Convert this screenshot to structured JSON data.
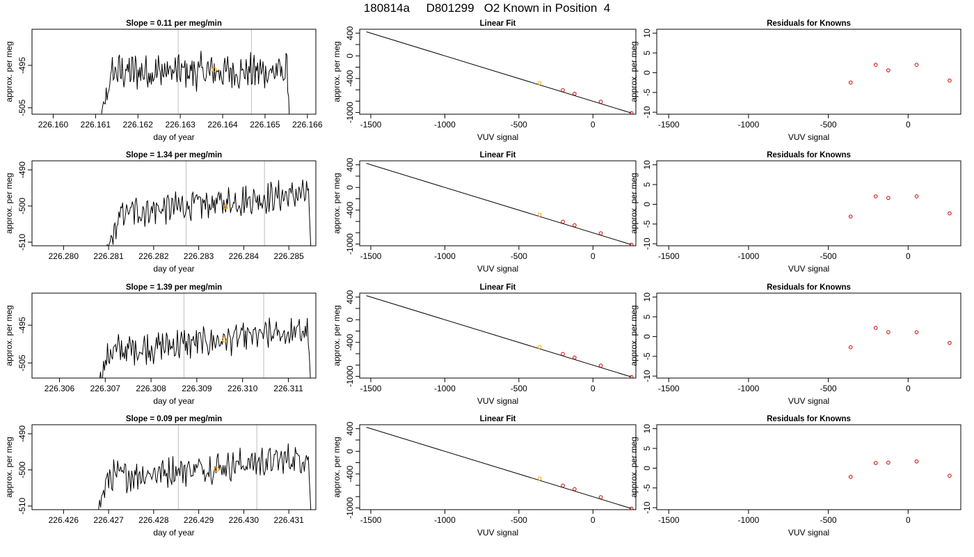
{
  "page": {
    "title": "180814a     D801299   O2 Known in Position  4"
  },
  "colors": {
    "trace": "#000000",
    "marker": "#ffa500",
    "residual": "#d00000",
    "guide": "#c8c8c8",
    "fit": "#000000"
  },
  "chart_data": [
    {
      "type": "line",
      "row": 0,
      "panel": "time",
      "title": "Slope =  0.11  per meg/min",
      "xlabel": "day of year",
      "ylabel": "approx. per meg",
      "xlim": [
        226.1595,
        226.1662
      ],
      "ylim": [
        -506.5,
        -486.5
      ],
      "xticks": [
        "226.160",
        "226.161",
        "226.162",
        "226.163",
        "226.164",
        "226.165",
        "226.166"
      ],
      "xtick_values": [
        226.16,
        226.161,
        226.162,
        226.163,
        226.164,
        226.165,
        226.166
      ],
      "yticks": [
        "-495",
        "-505"
      ],
      "ytick_values": [
        -495,
        -505
      ],
      "start": 226.161,
      "end": 226.1656,
      "mean": -496.5,
      "ramp_end": 226.1614,
      "vlines": [
        226.16295,
        226.16468
      ],
      "highlight": {
        "x": 226.1638,
        "y": -496.0
      },
      "grid": false
    },
    {
      "type": "line",
      "row": 0,
      "panel": "fit",
      "title": "Linear Fit",
      "xlabel": "VUV signal",
      "ylabel": "approx. per meg",
      "xlim": [
        -1575,
        290
      ],
      "ylim": [
        -1030,
        470
      ],
      "xticks": [
        "-1500",
        "-1000",
        "-500",
        "0"
      ],
      "xtick_values": [
        -1500,
        -1000,
        -500,
        0
      ],
      "yticks": [
        "400",
        "0",
        "-400",
        "-1000"
      ],
      "ytick_values": [
        400,
        0,
        -400,
        -1000
      ],
      "yminor": [
        200,
        -200,
        -600,
        -800
      ],
      "fit_line": {
        "x": [
          -1530,
          260
        ],
        "y": [
          425,
          -1010
        ]
      },
      "points": {
        "x": [
          -360,
          -203,
          -124,
          53,
          260
        ],
        "y": [
          -480,
          -605,
          -668,
          -810,
          -1010
        ]
      },
      "highlight_index": 0,
      "grid": false
    },
    {
      "type": "scatter",
      "row": 0,
      "panel": "residuals",
      "title": "Residuals for Knowns",
      "xlabel": "VUV signal",
      "ylabel": "approx. per meg",
      "xlim": [
        -1575,
        330
      ],
      "ylim": [
        -10.5,
        11
      ],
      "xticks": [
        "-1500",
        "-1000",
        "-500",
        "0"
      ],
      "xtick_values": [
        -1500,
        -1000,
        -500,
        0
      ],
      "yticks": [
        "10",
        "5",
        "0",
        "-5",
        "-10"
      ],
      "ytick_values": [
        10,
        5,
        0,
        -5,
        -10
      ],
      "points": {
        "x": [
          -360,
          -203,
          -124,
          53,
          260
        ],
        "y": [
          -2.5,
          2.0,
          0.6,
          2.0,
          -2.0
        ]
      },
      "grid": false
    },
    {
      "type": "line",
      "row": 1,
      "panel": "time",
      "title": "Slope =  1.34  per meg/min",
      "xlabel": "day of year",
      "ylabel": "approx. per meg",
      "xlim": [
        226.2793,
        226.2856
      ],
      "ylim": [
        -511,
        -487.5
      ],
      "xticks": [
        "226.280",
        "226.281",
        "226.282",
        "226.283",
        "226.284",
        "226.285"
      ],
      "xtick_values": [
        226.28,
        226.281,
        226.282,
        226.283,
        226.284,
        226.285
      ],
      "yticks": [
        "-490",
        "-500",
        "-510"
      ],
      "ytick_values": [
        -490,
        -500,
        -510
      ],
      "start": 226.2808,
      "end": 226.2855,
      "mean": -499.5,
      "ramp_end": 226.2813,
      "vlines": [
        226.28272,
        226.28446
      ],
      "highlight": {
        "x": 226.2836,
        "y": -500.2
      },
      "grid": false
    },
    {
      "type": "line",
      "row": 1,
      "panel": "fit",
      "title": "Linear Fit",
      "xlabel": "VUV signal",
      "ylabel": "approx. per meg",
      "xlim": [
        -1575,
        290
      ],
      "ylim": [
        -1030,
        470
      ],
      "xticks": [
        "-1500",
        "-1000",
        "-500",
        "0"
      ],
      "xtick_values": [
        -1500,
        -1000,
        -500,
        0
      ],
      "yticks": [
        "400",
        "0",
        "-400",
        "-1000"
      ],
      "ytick_values": [
        400,
        0,
        -400,
        -1000
      ],
      "yminor": [
        200,
        -200,
        -600,
        -800
      ],
      "fit_line": {
        "x": [
          -1530,
          260
        ],
        "y": [
          425,
          -1010
        ]
      },
      "points": {
        "x": [
          -360,
          -203,
          -124,
          53,
          260
        ],
        "y": [
          -480,
          -605,
          -668,
          -810,
          -1010
        ]
      },
      "highlight_index": 0,
      "grid": false
    },
    {
      "type": "scatter",
      "row": 1,
      "panel": "residuals",
      "title": "Residuals for Knowns",
      "xlabel": "VUV signal",
      "ylabel": "approx. per meg",
      "xlim": [
        -1575,
        330
      ],
      "ylim": [
        -10.5,
        11
      ],
      "xticks": [
        "-1500",
        "-1000",
        "-500",
        "0"
      ],
      "xtick_values": [
        -1500,
        -1000,
        -500,
        0
      ],
      "yticks": [
        "10",
        "5",
        "0",
        "-5",
        "-10"
      ],
      "ytick_values": [
        10,
        5,
        0,
        -5,
        -10
      ],
      "points": {
        "x": [
          -360,
          -203,
          -124,
          53,
          260
        ],
        "y": [
          -3.1,
          2.0,
          1.6,
          2.0,
          -2.3
        ]
      },
      "grid": false
    },
    {
      "type": "line",
      "row": 2,
      "panel": "time",
      "title": "Slope =  1.39  per meg/min",
      "xlabel": "day of year",
      "ylabel": "approx. per meg",
      "xlim": [
        226.3054,
        226.3116
      ],
      "ylim": [
        -509,
        -486.5
      ],
      "xticks": [
        "226.306",
        "226.307",
        "226.308",
        "226.309",
        "226.310",
        "226.311"
      ],
      "xtick_values": [
        226.306,
        226.307,
        226.308,
        226.309,
        226.31,
        226.311
      ],
      "yticks": [
        "-495",
        "-505"
      ],
      "ytick_values": [
        -495,
        -505
      ],
      "start": 226.3067,
      "end": 226.3115,
      "mean": -499.5,
      "ramp_end": 226.3071,
      "vlines": [
        226.30872,
        226.31046
      ],
      "highlight": {
        "x": 226.3096,
        "y": -498.8
      },
      "grid": false
    },
    {
      "type": "line",
      "row": 2,
      "panel": "fit",
      "title": "Linear Fit",
      "xlabel": "VUV signal",
      "ylabel": "approx. per meg",
      "xlim": [
        -1575,
        290
      ],
      "ylim": [
        -1030,
        470
      ],
      "xticks": [
        "-1500",
        "-1000",
        "-500",
        "0"
      ],
      "xtick_values": [
        -1500,
        -1000,
        -500,
        0
      ],
      "yticks": [
        "400",
        "0",
        "-400",
        "-1000"
      ],
      "ytick_values": [
        400,
        0,
        -400,
        -1000
      ],
      "yminor": [
        200,
        -200,
        -600,
        -800
      ],
      "fit_line": {
        "x": [
          -1530,
          260
        ],
        "y": [
          425,
          -1010
        ]
      },
      "points": {
        "x": [
          -360,
          -203,
          -124,
          53,
          260
        ],
        "y": [
          -480,
          -605,
          -668,
          -810,
          -1010
        ]
      },
      "highlight_index": 0,
      "grid": false
    },
    {
      "type": "scatter",
      "row": 2,
      "panel": "residuals",
      "title": "Residuals for Knowns",
      "xlabel": "VUV signal",
      "ylabel": "approx. per meg",
      "xlim": [
        -1575,
        330
      ],
      "ylim": [
        -10.5,
        11
      ],
      "xticks": [
        "-1500",
        "-1000",
        "-500",
        "0"
      ],
      "xtick_values": [
        -1500,
        -1000,
        -500,
        0
      ],
      "yticks": [
        "10",
        "5",
        "0",
        "-5",
        "-10"
      ],
      "ytick_values": [
        10,
        5,
        0,
        -5,
        -10
      ],
      "points": {
        "x": [
          -360,
          -203,
          -124,
          53,
          260
        ],
        "y": [
          -2.7,
          2.2,
          1.1,
          1.1,
          -1.6
        ]
      },
      "grid": false
    },
    {
      "type": "line",
      "row": 3,
      "panel": "time",
      "title": "Slope =  0.09  per meg/min",
      "xlabel": "day of year",
      "ylabel": "approx. per meg",
      "xlim": [
        226.4253,
        226.4316
      ],
      "ylim": [
        -511,
        -487.5
      ],
      "xticks": [
        "226.426",
        "226.427",
        "226.428",
        "226.429",
        "226.430",
        "226.431"
      ],
      "xtick_values": [
        226.426,
        226.427,
        226.428,
        226.429,
        226.43,
        226.431
      ],
      "yticks": [
        "-490",
        "-500",
        "-510"
      ],
      "ytick_values": [
        -490,
        -500,
        -510
      ],
      "start": 226.4266,
      "end": 226.4315,
      "mean": -499.5,
      "ramp_end": 226.427,
      "vlines": [
        226.42855,
        226.43029
      ],
      "highlight": {
        "x": 226.4294,
        "y": -499.8
      },
      "grid": false
    },
    {
      "type": "line",
      "row": 3,
      "panel": "fit",
      "title": "Linear Fit",
      "xlabel": "VUV signal",
      "ylabel": "approx. per meg",
      "xlim": [
        -1575,
        290
      ],
      "ylim": [
        -1030,
        470
      ],
      "xticks": [
        "-1500",
        "-1000",
        "-500",
        "0"
      ],
      "xtick_values": [
        -1500,
        -1000,
        -500,
        0
      ],
      "yticks": [
        "400",
        "0",
        "-400",
        "-1000"
      ],
      "ytick_values": [
        400,
        0,
        -400,
        -1000
      ],
      "yminor": [
        200,
        -200,
        -600,
        -800
      ],
      "fit_line": {
        "x": [
          -1530,
          260
        ],
        "y": [
          425,
          -1010
        ]
      },
      "points": {
        "x": [
          -360,
          -203,
          -124,
          53,
          260
        ],
        "y": [
          -480,
          -605,
          -668,
          -810,
          -1010
        ]
      },
      "highlight_index": 0,
      "grid": false
    },
    {
      "type": "scatter",
      "row": 3,
      "panel": "residuals",
      "title": "Residuals for Knowns",
      "xlabel": "VUV signal",
      "ylabel": "approx. per meg",
      "xlim": [
        -1575,
        330
      ],
      "ylim": [
        -10.5,
        11
      ],
      "xticks": [
        "-1500",
        "-1000",
        "-500",
        "0"
      ],
      "xtick_values": [
        -1500,
        -1000,
        -500,
        0
      ],
      "yticks": [
        "10",
        "5",
        "0",
        "-5",
        "-10"
      ],
      "ytick_values": [
        10,
        5,
        0,
        -5,
        -10
      ],
      "points": {
        "x": [
          -360,
          -203,
          -124,
          53,
          260
        ],
        "y": [
          -2.2,
          1.3,
          1.4,
          1.7,
          -1.9
        ]
      },
      "grid": false
    }
  ]
}
